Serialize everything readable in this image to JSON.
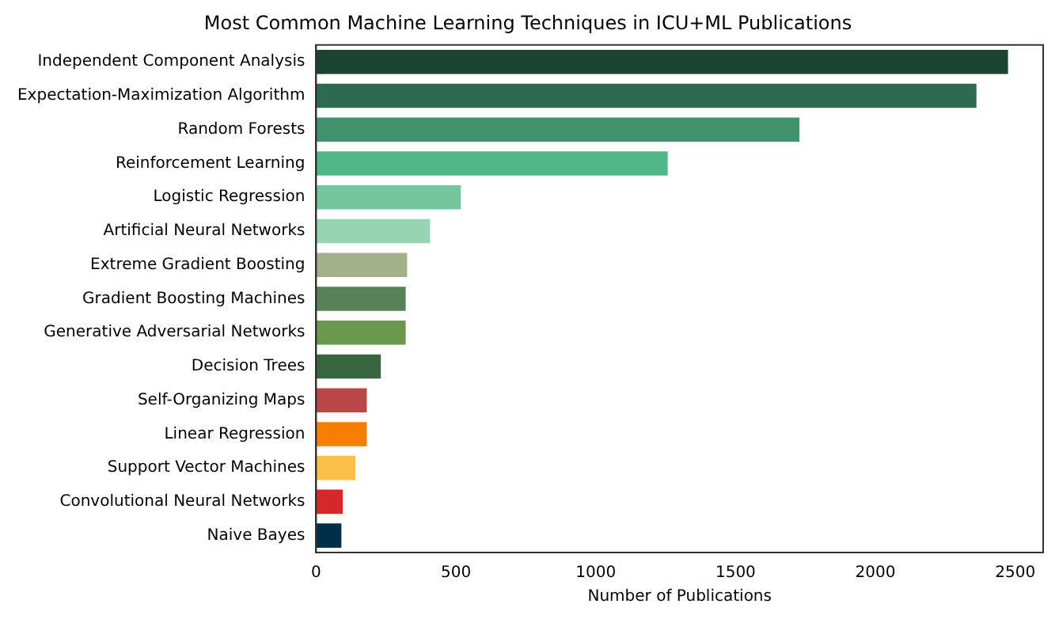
{
  "chart_data": {
    "type": "bar",
    "orientation": "horizontal",
    "title": "Most Common Machine Learning Techniques in ICU+ML Publications",
    "xlabel": "Number of Publications",
    "categories": [
      "Independent Component Analysis",
      "Expectation-Maximization Algorithm",
      "Random Forests",
      "Reinforcement Learning",
      "Logistic Regression",
      "Artificial Neural Networks",
      "Extreme Gradient Boosting",
      "Gradient Boosting Machines",
      "Generative Adversarial Networks",
      "Decision Trees",
      "Self-Organizing Maps",
      "Linear Regression",
      "Support Vector Machines",
      "Convolutional Neural Networks",
      "Naive Bayes"
    ],
    "values": [
      2480,
      2367,
      1734,
      1263,
      523,
      413,
      331,
      326,
      326,
      237,
      187,
      187,
      146,
      101,
      96
    ],
    "colors": [
      "#1b4332",
      "#2d6a4f",
      "#40916c",
      "#52b788",
      "#74c69d",
      "#95d5b2",
      "#a3b18a",
      "#588157",
      "#6a994e",
      "#386641",
      "#bc4749",
      "#f77f00",
      "#fcbf49",
      "#d62828",
      "#003049"
    ],
    "xlim": [
      0,
      2600
    ],
    "xticks": [
      0,
      500,
      1000,
      1500,
      2000,
      2500
    ],
    "grid": false
  }
}
